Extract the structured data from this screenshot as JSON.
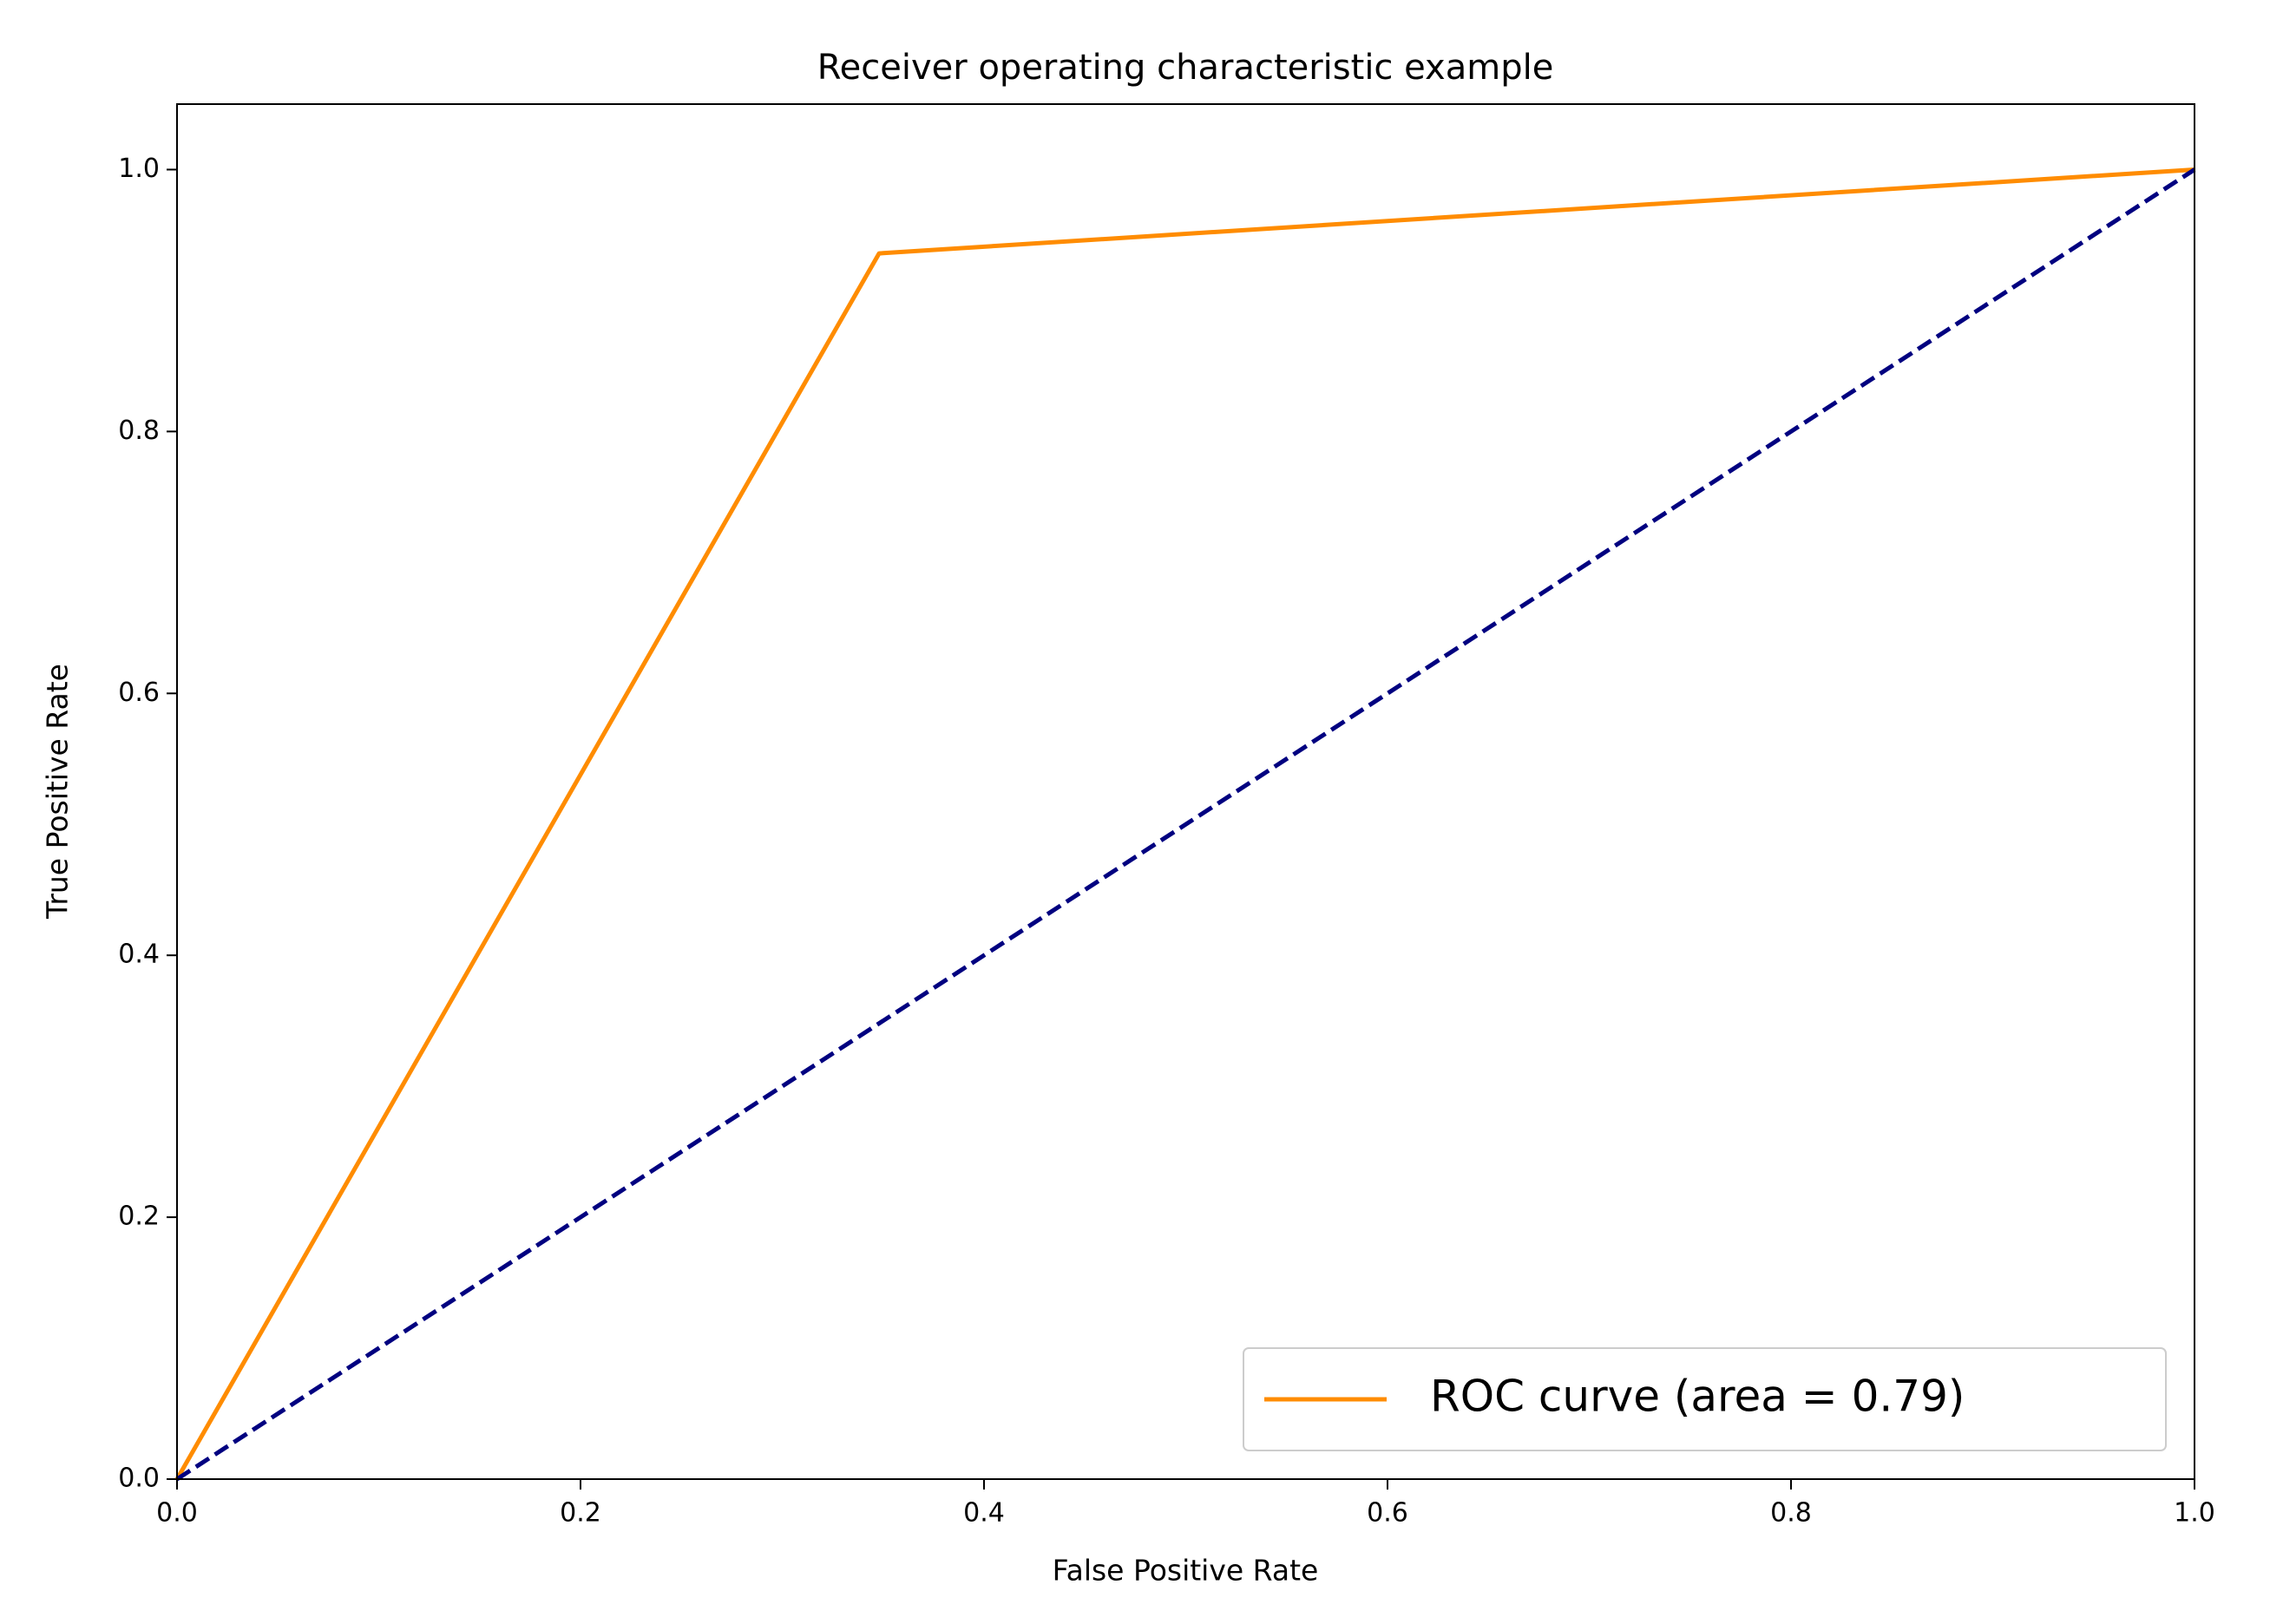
{
  "chart_data": {
    "type": "line",
    "title": "Receiver operating characteristic example",
    "xlabel": "False Positive Rate",
    "ylabel": "True Positive Rate",
    "xlim": [
      0,
      1
    ],
    "ylim": [
      0,
      1.05
    ],
    "xticks": [
      {
        "value": 0,
        "label": "0.0"
      },
      0.2,
      0.4,
      0.6,
      0.8,
      {
        "value": 1,
        "label": "1.0"
      }
    ],
    "yticks": [
      {
        "value": 0,
        "label": "0.0"
      },
      0.2,
      0.4,
      0.6,
      0.8,
      {
        "value": 1,
        "label": "1.0"
      }
    ],
    "grid": false,
    "legend": "lower right",
    "series": [
      {
        "name": "ROC curve (area = 0.79)",
        "color": "#ff8c00",
        "style": "solid",
        "x": [
          0,
          0.348,
          1
        ],
        "values": [
          0,
          0.936,
          1
        ]
      },
      {
        "color": "#000080",
        "style": "dashed",
        "x": [
          0,
          1
        ],
        "values": [
          0,
          1
        ]
      }
    ]
  }
}
